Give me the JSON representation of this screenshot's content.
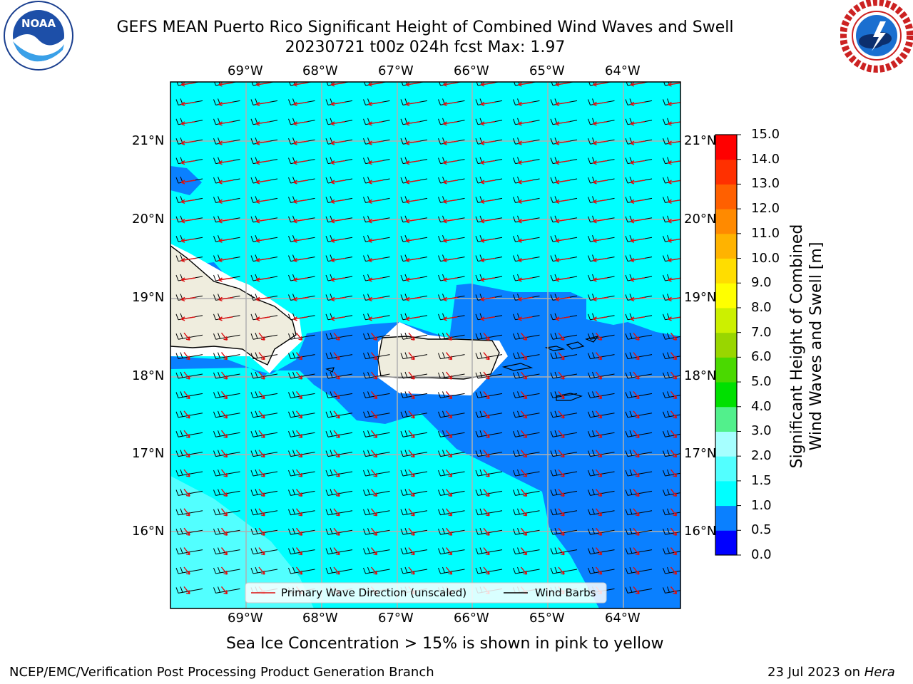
{
  "title": {
    "line1": "GEFS MEAN Puerto Rico Significant Height of Combined Wind Waves and Swell",
    "line2": "20230721 t00z 024h fcst   Max: 1.97"
  },
  "logos": {
    "left": {
      "name": "noaa-logo",
      "text": "NOAA",
      "ring_text": "NATIONAL OCEANIC AND ATMOSPHERIC ADMINISTRATION · U.S. DEPARTMENT OF COMMERCE"
    },
    "right": {
      "name": "nws-logo",
      "ring_text": "NATIONAL WEATHER SERVICE"
    }
  },
  "map": {
    "lon_labels": [
      "69°W",
      "68°W",
      "67°W",
      "66°W",
      "65°W",
      "64°W"
    ],
    "lat_labels": [
      "21°N",
      "20°N",
      "19°N",
      "18°N",
      "17°N",
      "16°N"
    ],
    "legend": {
      "wave_direction": "Primary Wave Direction (unscaled)",
      "wind_barbs": "Wind Barbs",
      "wave_color": "#dd1111",
      "barb_color": "#000000"
    },
    "ocean_colors": {
      "0.5-1.0": "#0a80ff",
      "1.0-1.5": "#00ffff",
      "1.5-2.0": "#52ffff"
    },
    "land_color": "#efedde"
  },
  "colorbar": {
    "label_line1": "Significant Height of Combined",
    "label_line2": "Wind Waves and Swell [m]",
    "ticks": [
      "0.0",
      "0.5",
      "1.0",
      "1.5",
      "2.0",
      "3.0",
      "4.0",
      "5.0",
      "6.0",
      "7.0",
      "8.0",
      "9.0",
      "10.0",
      "11.0",
      "12.0",
      "13.0",
      "14.0",
      "15.0"
    ],
    "colors": [
      "#0000ff",
      "#0a80ff",
      "#00ffff",
      "#52ffff",
      "#a6ffff",
      "#52f08c",
      "#00e000",
      "#4ad900",
      "#99d600",
      "#ccf000",
      "#ffff00",
      "#ffdd00",
      "#ffb300",
      "#ff8a00",
      "#ff6000",
      "#ff3000",
      "#ff0000"
    ]
  },
  "caption": "Sea Ice Concentration > 15% is shown in pink to yellow",
  "footer": {
    "left": "NCEP/EMC/Verification Post Processing Product Generation Branch",
    "right_date": "23 Jul 2023 on ",
    "right_machine": "Hera"
  }
}
